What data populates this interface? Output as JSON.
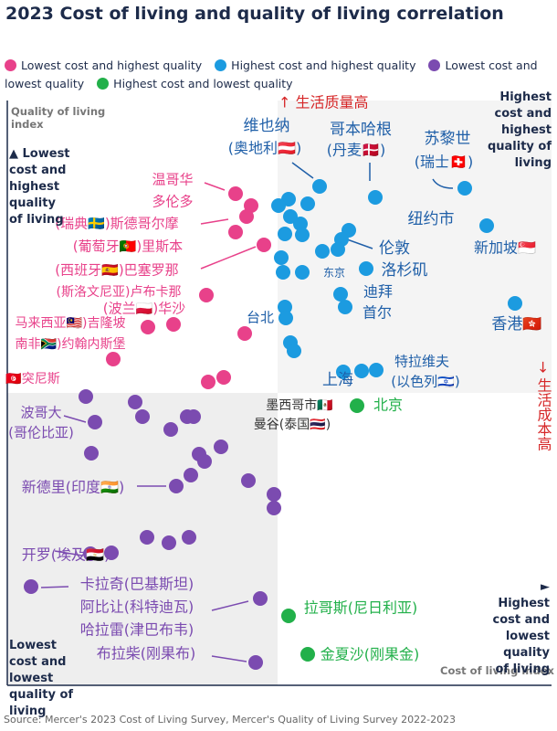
{
  "chart_data": {
    "type": "scatter",
    "title": "2023 Cost of living and quality of living correlation",
    "x_label": "Cost of living index",
    "y_label": "Quality of living index",
    "xlim": [
      0,
      596
    ],
    "ylim": [
      0,
      640
    ],
    "source": "Source: Mercer's 2023 Cost of Living Survey, Mercer's Quality of Living Survey 2022-2023",
    "quadrant_labels": [
      "Highest cost and highest quality of living",
      "▲ Lowest cost and highest quality of living",
      "► Highest cost and lowest quality of living",
      "Lowest cost and lowest quality of living"
    ],
    "axis_notes": [
      "↑ 生活质量高",
      "→ 生活成本高"
    ],
    "series": [
      {
        "name": "Lowest cost and highest quality",
        "color": "#e8418a",
        "x": [
          250,
          267,
          262,
          250,
          281,
          218,
          182,
          154,
          260,
          116,
          220,
          237
        ],
        "values": [
          538,
          525,
          513,
          496,
          482,
          427,
          395,
          392,
          385,
          357,
          332,
          337
        ]
      },
      {
        "name": "Highest cost and highest quality",
        "color": "#1c9be0",
        "x": [
          342,
          308,
          297,
          329,
          403,
          501,
          525,
          310,
          321,
          304,
          323,
          374,
          366,
          345,
          362,
          300,
          302,
          323,
          393,
          365,
          370,
          556,
          304,
          305,
          310,
          314,
          388,
          404,
          368
        ],
        "values": [
          546,
          532,
          525,
          527,
          534,
          544,
          503,
          513,
          505,
          494,
          493,
          498,
          488,
          475,
          477,
          468,
          452,
          452,
          456,
          428,
          414,
          418,
          414,
          402,
          375,
          366,
          344,
          345,
          343
        ]
      },
      {
        "name": "Lowest cost and lowest quality",
        "color": "#7b4bb0",
        "x": [
          86,
          140,
          148,
          96,
          197,
          204,
          179,
          234,
          210,
          92,
          216,
          201,
          185,
          264,
          292,
          292,
          91,
          114,
          153,
          177,
          199,
          26,
          277,
          272
        ],
        "values": [
          316,
          310,
          294,
          288,
          294,
          294,
          280,
          261,
          253,
          254,
          245,
          230,
          218,
          224,
          209,
          194,
          144,
          145,
          162,
          156,
          162,
          108,
          95,
          25
        ]
      },
      {
        "name": "Highest cost and lowest quality",
        "color": "#22b04a",
        "x": [
          383,
          308,
          329
        ],
        "values": [
          306,
          76,
          34
        ]
      }
    ],
    "annotations": [
      {
        "text": "维也纳",
        "color": "#1f5fa8"
      },
      {
        "text": "(奥地利🇦🇹)",
        "color": "#1f5fa8"
      },
      {
        "text": "哥本哈根",
        "color": "#1f5fa8"
      },
      {
        "text": "(丹麦🇩🇰)",
        "color": "#1f5fa8"
      },
      {
        "text": "苏黎世",
        "color": "#1f5fa8"
      },
      {
        "text": "(瑞士🇨🇭)",
        "color": "#1f5fa8"
      },
      {
        "text": "纽约市",
        "color": "#1f5fa8"
      },
      {
        "text": "新加坡🇸🇬",
        "color": "#1f5fa8"
      },
      {
        "text": "伦敦",
        "color": "#1f5fa8"
      },
      {
        "text": "东京",
        "color": "#1f5fa8"
      },
      {
        "text": "洛杉矶",
        "color": "#1f5fa8"
      },
      {
        "text": "迪拜",
        "color": "#1f5fa8"
      },
      {
        "text": "首尔",
        "color": "#1f5fa8"
      },
      {
        "text": "台北",
        "color": "#1f5fa8"
      },
      {
        "text": "香港🇭🇰",
        "color": "#1f5fa8"
      },
      {
        "text": "上海",
        "color": "#1f5fa8"
      },
      {
        "text": "特拉维夫",
        "color": "#1f5fa8"
      },
      {
        "text": "(以色列🇮🇱)",
        "color": "#1f5fa8"
      },
      {
        "text": "温哥华",
        "color": "#e8418a"
      },
      {
        "text": "多伦多",
        "color": "#e8418a"
      },
      {
        "text": "(瑞典🇸🇪)斯德哥尔摩",
        "color": "#e8418a"
      },
      {
        "text": "(葡萄牙🇵🇹)里斯本",
        "color": "#e8418a"
      },
      {
        "text": "(西班牙🇪🇸)巴塞罗那",
        "color": "#e8418a"
      },
      {
        "text": "(斯洛文尼亚)卢布卡那",
        "color": "#e8418a"
      },
      {
        "text": "(波兰🇵🇱)华沙",
        "color": "#e8418a"
      },
      {
        "text": "马来西亚🇲🇾)吉隆坡",
        "color": "#e8418a"
      },
      {
        "text": "南非🇿🇦)约翰内斯堡",
        "color": "#e8418a"
      },
      {
        "text": "🇹🇳突尼斯",
        "color": "#e8418a"
      },
      {
        "text": "波哥大",
        "color": "#7b4bb0"
      },
      {
        "text": "(哥伦比亚)",
        "color": "#7b4bb0"
      },
      {
        "text": "新德里(印度🇮🇳)",
        "color": "#7b4bb0"
      },
      {
        "text": "开罗(埃及🇪🇬)",
        "color": "#7b4bb0"
      },
      {
        "text": "卡拉奇(巴基斯坦)",
        "color": "#7b4bb0"
      },
      {
        "text": "阿比让(科特迪瓦)",
        "color": "#7b4bb0"
      },
      {
        "text": "哈拉雷(津巴布韦)",
        "color": "#7b4bb0"
      },
      {
        "text": "布拉柴(刚果布)",
        "color": "#7b4bb0"
      },
      {
        "text": "墨西哥市🇲🇽",
        "color": "#333333"
      },
      {
        "text": "曼谷(泰国🇹🇭)",
        "color": "#333333"
      },
      {
        "text": "北京",
        "color": "#22b04a"
      },
      {
        "text": "拉哥斯(尼日利亚)",
        "color": "#22b04a"
      },
      {
        "text": "金夏沙(刚果金)",
        "color": "#22b04a"
      }
    ]
  }
}
